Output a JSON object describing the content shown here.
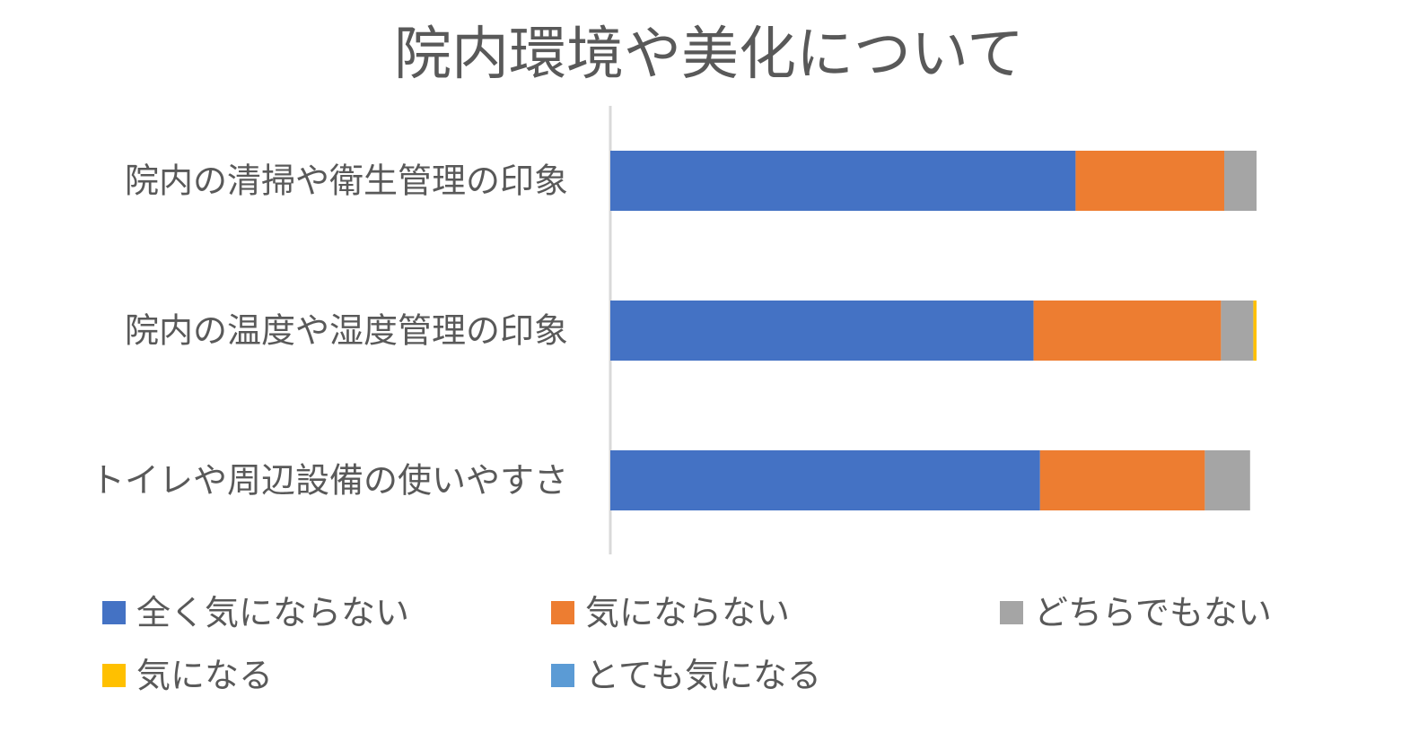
{
  "chart_data": {
    "type": "bar",
    "orientation": "horizontal",
    "stacked": true,
    "title": "院内環境や美化について",
    "categories": [
      "院内の清掃や衛生管理の印象",
      "院内の温度や湿度管理の印象",
      "トイレや周辺設備の使いやすさ"
    ],
    "series": [
      {
        "name": "全く気にならない",
        "color": "#4472C4",
        "values": [
          72,
          65.5,
          66.5
        ]
      },
      {
        "name": "気にならない",
        "color": "#ED7D31",
        "values": [
          23,
          29,
          25.5
        ]
      },
      {
        "name": "どちらでもない",
        "color": "#A5A5A5",
        "values": [
          5,
          5,
          7
        ]
      },
      {
        "name": "気になる",
        "color": "#FFC000",
        "values": [
          0,
          0.5,
          0
        ]
      },
      {
        "name": "とても気になる",
        "color": "#5B9BD5",
        "values": [
          0,
          0,
          0
        ]
      }
    ],
    "xlim": [
      0,
      100
    ],
    "grid": false,
    "legend_position": "bottom"
  }
}
